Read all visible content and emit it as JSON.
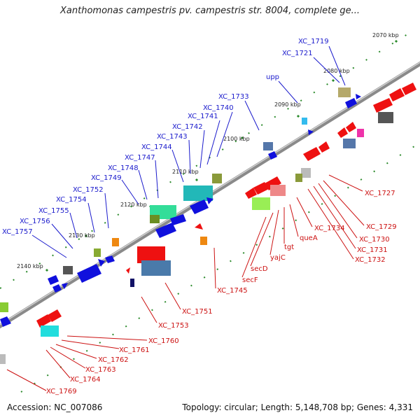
{
  "title": "Xanthomonas campestris pv. campestris str. 8004, complete ge...",
  "footer": {
    "accession": "Accession: NC_007086",
    "summary": "Topology: circular; Length: 5,148,708 bp; Genes: 4,331"
  },
  "scale": [
    "2070 kbp",
    "2080 kbp",
    "2090 kbp",
    "2100 kbp",
    "2110 kbp",
    "2120 kbp",
    "2130 kbp",
    "2140 kbp"
  ],
  "labels_top": [
    "XC_1719",
    "XC_1721",
    "upp",
    "XC_1733",
    "XC_1740",
    "XC_1741",
    "XC_1742",
    "XC_1743",
    "XC_1744",
    "XC_1747",
    "XC_1748",
    "XC_1749",
    "XC_1752",
    "XC_1754",
    "XC_1755",
    "XC_1756",
    "XC_1757"
  ],
  "labels_bottom": [
    "XC_1727",
    "XC_1729",
    "XC_1730",
    "XC_1731",
    "XC_1732",
    "XC_1734",
    "queA",
    "tgt",
    "yajC",
    "secD",
    "secF",
    "XC_1745",
    "XC_1751",
    "XC_1753",
    "XC_1760",
    "XC_1761",
    "XC_1762",
    "XC_1763",
    "XC_1764",
    "XC_1769"
  ],
  "colors": {
    "forward": "#1010dd",
    "reverse": "#ee1111",
    "backbone": "#888888",
    "tick": "#2a8a2a",
    "label_top": "#1a1acc",
    "label_bottom": "#cc1111"
  }
}
